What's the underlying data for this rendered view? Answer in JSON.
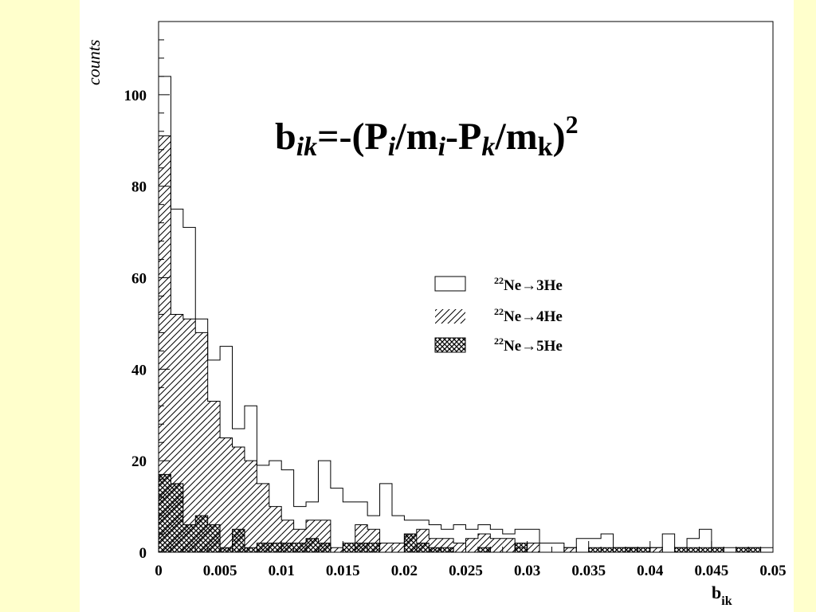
{
  "slide_background": "#FFFFCC",
  "chart_data": {
    "type": "histogram",
    "formula": {
      "base": "b",
      "base_sub": "ik",
      "eq": "=-(P",
      "p_sub1": "i",
      "slash1": "/m",
      "m_sub1": "i",
      "minus": "-P",
      "p_sub2": "k",
      "slash2": "/m",
      "m_sub2": "k",
      "close": ")",
      "sup": "2"
    },
    "xlabel": {
      "main": "b",
      "sub": "ik"
    },
    "ylabel": "counts",
    "xlim": [
      0,
      0.05
    ],
    "ylim": [
      0,
      116
    ],
    "bin_width": 0.001,
    "x_ticks": [
      "0",
      "0.005",
      "0.01",
      "0.015",
      "0.02",
      "0.025",
      "0.03",
      "0.035",
      "0.04",
      "0.045",
      "0.05"
    ],
    "x_tick_values": [
      0,
      0.005,
      0.01,
      0.015,
      0.02,
      0.025,
      0.03,
      0.035,
      0.04,
      0.045,
      0.05
    ],
    "y_ticks": [
      "0",
      "20",
      "40",
      "60",
      "80",
      "100"
    ],
    "y_tick_values": [
      0,
      20,
      40,
      60,
      80,
      100
    ],
    "legend": {
      "position": "center-right",
      "entries": [
        {
          "sup": "22",
          "text": "Ne→3He",
          "style": "open"
        },
        {
          "sup": "22",
          "text": "Ne→4He",
          "style": "hatched"
        },
        {
          "sup": "22",
          "text": "Ne→5He",
          "style": "cross-hatched"
        }
      ]
    },
    "series": [
      {
        "name": "22Ne→3He",
        "style": "open",
        "values": [
          104,
          75,
          71,
          51,
          42,
          45,
          27,
          32,
          19,
          20,
          18,
          10,
          11,
          20,
          14,
          11,
          11,
          8,
          15,
          8,
          7,
          7,
          6,
          5,
          6,
          5,
          6,
          5,
          4,
          5,
          5,
          2,
          2,
          1,
          3,
          3,
          4,
          1,
          1,
          1,
          1,
          4,
          1,
          3,
          5,
          1,
          1,
          1,
          1,
          1
        ]
      },
      {
        "name": "22Ne→4He",
        "style": "hatched",
        "values": [
          91,
          52,
          51,
          48,
          33,
          25,
          23,
          20,
          15,
          10,
          7,
          5,
          7,
          7,
          1,
          0,
          6,
          5,
          2,
          2,
          4,
          5,
          3,
          3,
          2,
          3,
          4,
          3,
          3,
          1,
          2,
          0,
          0,
          1,
          0,
          0,
          0,
          0,
          1,
          0,
          1,
          0,
          0,
          0,
          0,
          0,
          0,
          0,
          0,
          0
        ]
      },
      {
        "name": "22Ne→5He",
        "style": "cross-hatched",
        "values": [
          17,
          15,
          6,
          8,
          6,
          1,
          5,
          1,
          2,
          2,
          2,
          2,
          3,
          2,
          0,
          2,
          2,
          2,
          0,
          0,
          4,
          2,
          1,
          1,
          0,
          0,
          1,
          0,
          0,
          2,
          0,
          0,
          0,
          0,
          0,
          1,
          1,
          1,
          1,
          1,
          0,
          0,
          1,
          1,
          1,
          1,
          0,
          1,
          1,
          0
        ]
      }
    ]
  }
}
